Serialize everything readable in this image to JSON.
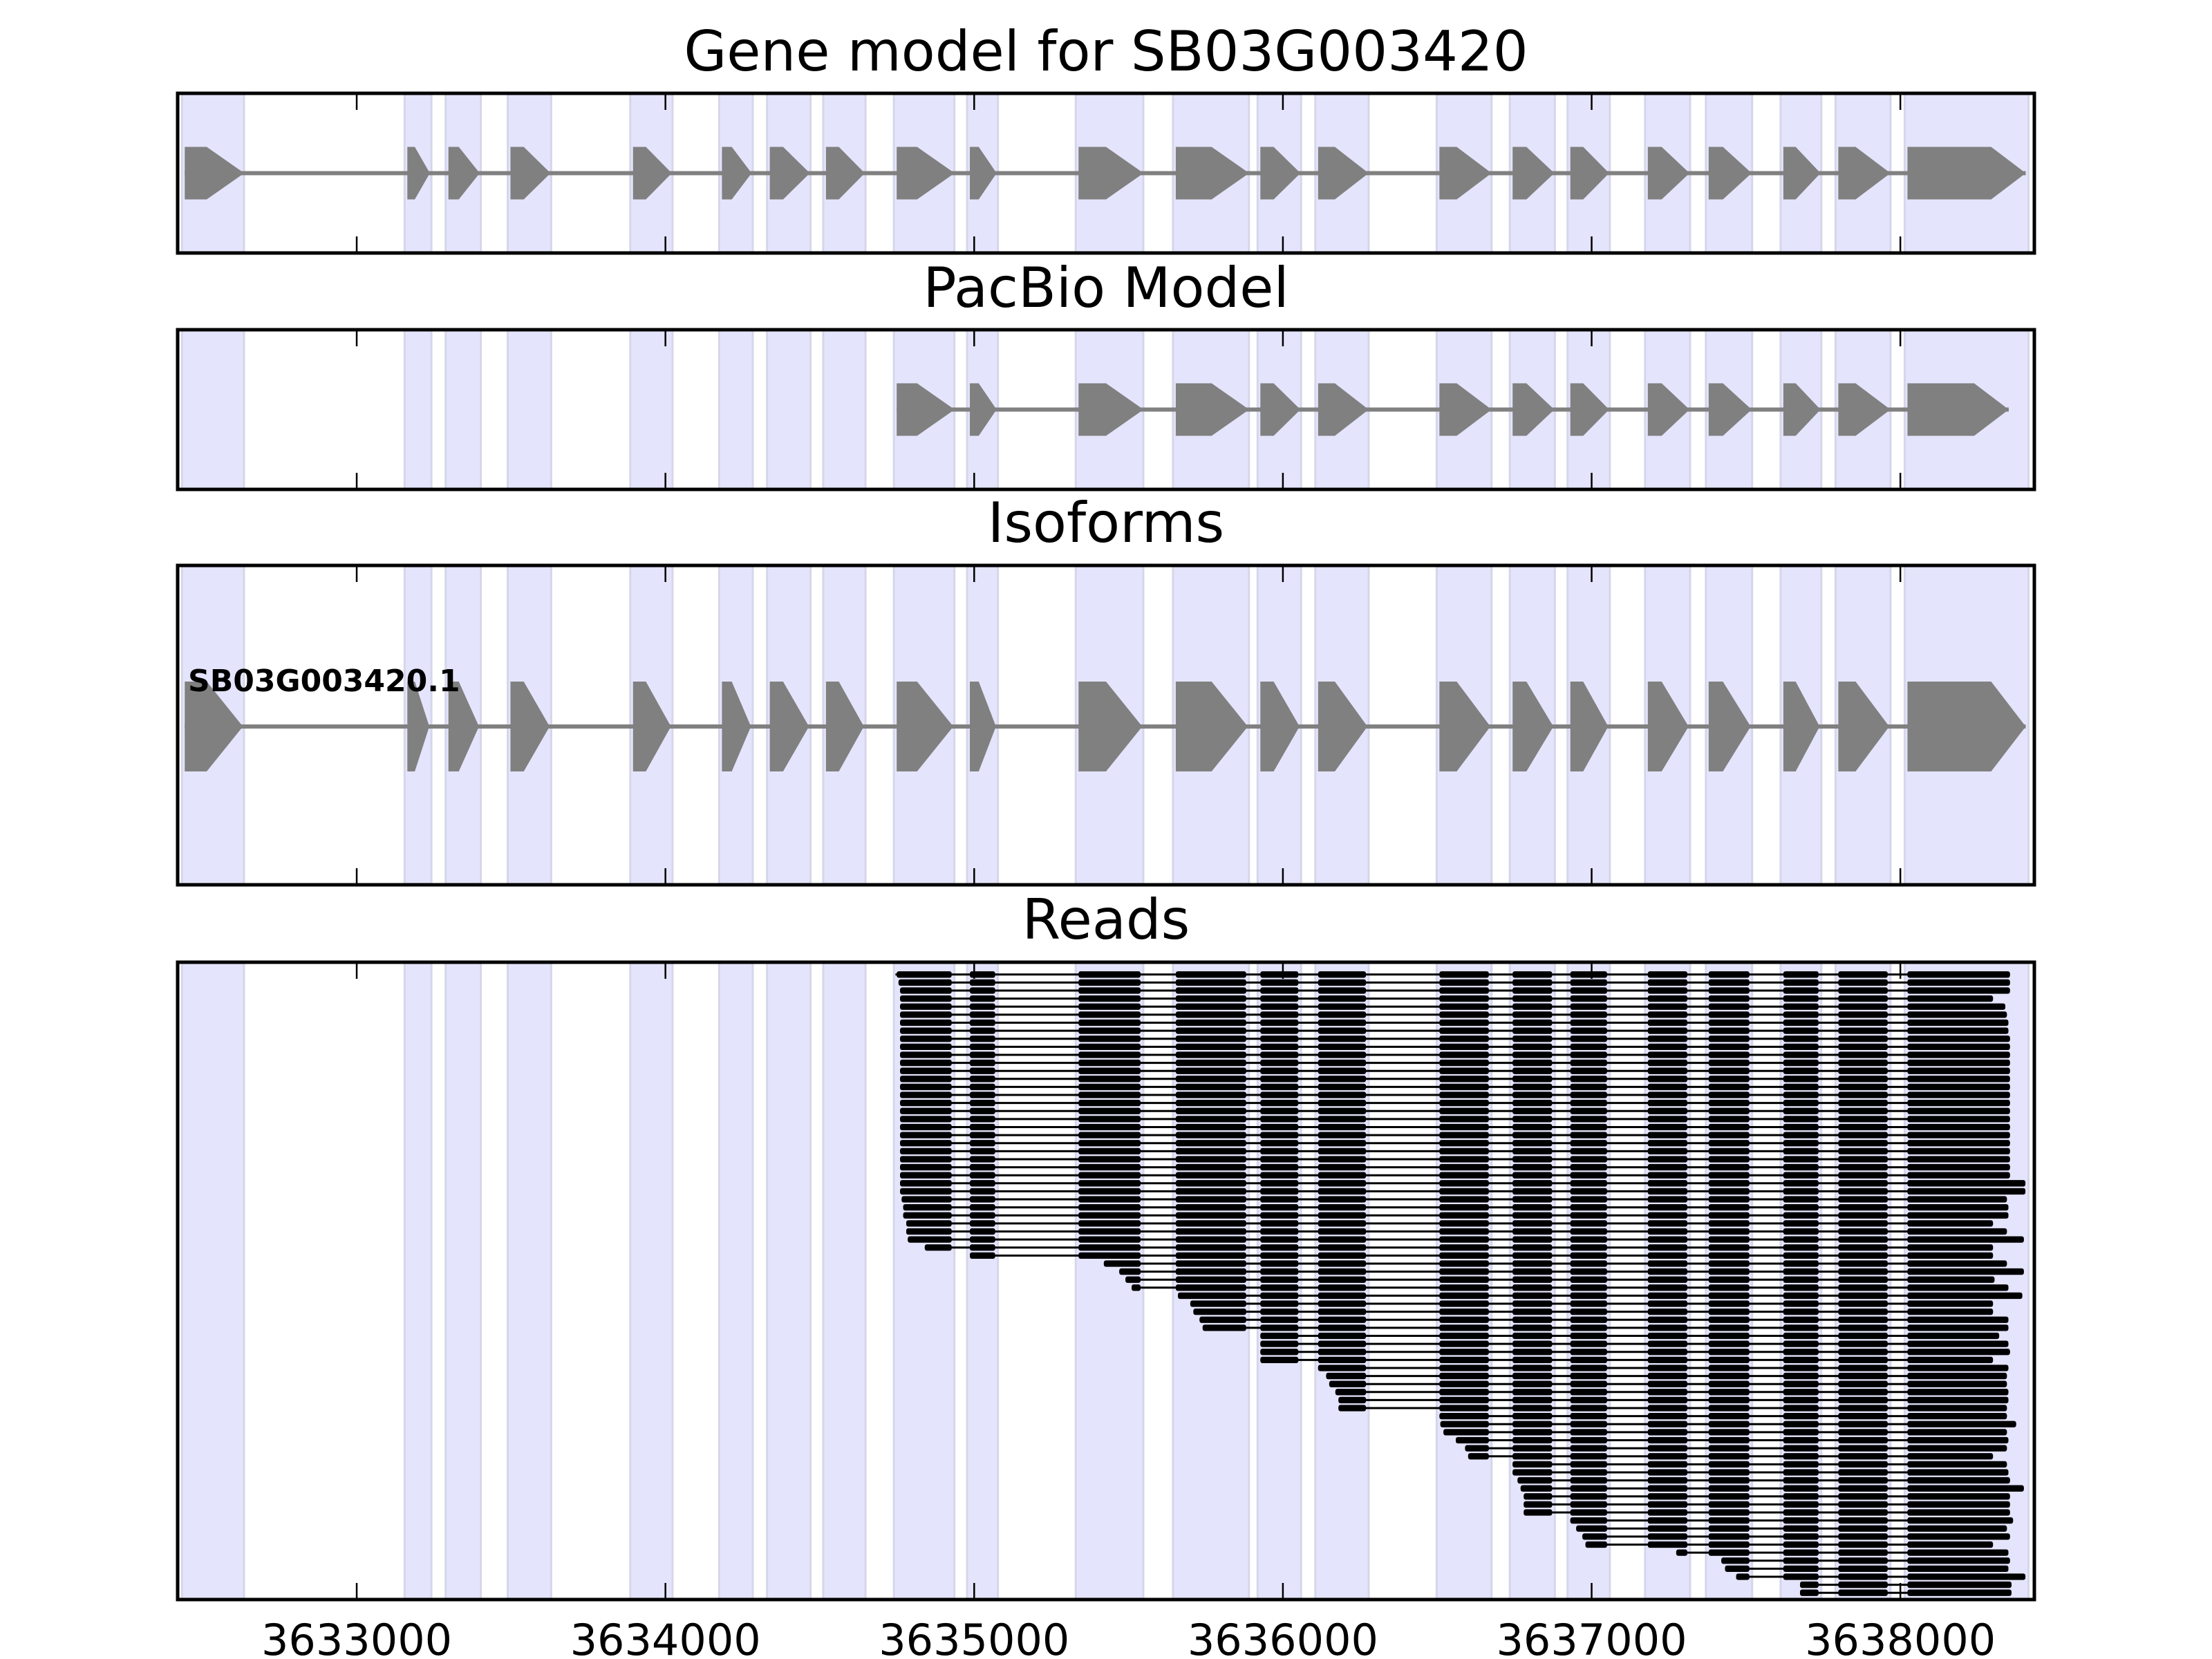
{
  "chart_data": {
    "type": "gene-track",
    "xlim": [
      3632420,
      3638434
    ],
    "x_ticks": [
      3633000,
      3634000,
      3635000,
      3636000,
      3637000,
      3638000
    ],
    "x_tick_labels": [
      "3633000",
      "3634000",
      "3635000",
      "3636000",
      "3637000",
      "3638000"
    ],
    "colors": {
      "exon": "#808080",
      "shade": "#e4e4fc",
      "shade_edge": "#d6d6ea",
      "read": "#000000"
    },
    "exons": [
      [
        3632443,
        3632626
      ],
      [
        3633164,
        3633233
      ],
      [
        3633297,
        3633393
      ],
      [
        3633498,
        3633621
      ],
      [
        3633895,
        3634014
      ],
      [
        3634183,
        3634274
      ],
      [
        3634338,
        3634461
      ],
      [
        3634520,
        3634639
      ],
      [
        3634749,
        3634927
      ],
      [
        3634986,
        3635068
      ],
      [
        3635338,
        3635539
      ],
      [
        3635653,
        3635881
      ],
      [
        3635927,
        3636050
      ],
      [
        3636114,
        3636269
      ],
      [
        3636507,
        3636667
      ],
      [
        3636744,
        3636872
      ],
      [
        3636931,
        3637050
      ],
      [
        3637182,
        3637310
      ],
      [
        3637379,
        3637511
      ],
      [
        3637621,
        3637735
      ],
      [
        3637799,
        3637959
      ],
      [
        3638023,
        3638406
      ]
    ],
    "panels": [
      {
        "title": "Gene model for SB03G003420",
        "models": [
          {
            "exon_range": [
              0,
              21
            ],
            "end": 3638406
          }
        ]
      },
      {
        "title": "PacBio Model",
        "models": [
          {
            "exon_range": [
              8,
              21
            ],
            "end": 3638351
          }
        ]
      },
      {
        "title": "Isoforms",
        "models": [
          {
            "label": "SB03G003420.1",
            "exon_range": [
              0,
              21
            ],
            "end": 3638406
          }
        ]
      },
      {
        "title": "Reads"
      }
    ],
    "reads": [
      [
        3634745,
        3638355
      ],
      [
        3634755,
        3638355
      ],
      [
        3634760,
        3638355
      ],
      [
        3634760,
        3638300
      ],
      [
        3634760,
        3638340
      ],
      [
        3634760,
        3638345
      ],
      [
        3634760,
        3638350
      ],
      [
        3634760,
        3638350
      ],
      [
        3634760,
        3638355
      ],
      [
        3634760,
        3638355
      ],
      [
        3634760,
        3638355
      ],
      [
        3634760,
        3638355
      ],
      [
        3634760,
        3638355
      ],
      [
        3634760,
        3638355
      ],
      [
        3634760,
        3638355
      ],
      [
        3634760,
        3638355
      ],
      [
        3634760,
        3638355
      ],
      [
        3634760,
        3638355
      ],
      [
        3634760,
        3638355
      ],
      [
        3634760,
        3638355
      ],
      [
        3634760,
        3638355
      ],
      [
        3634760,
        3638355
      ],
      [
        3634760,
        3638355
      ],
      [
        3634760,
        3638355
      ],
      [
        3634760,
        3638355
      ],
      [
        3634760,
        3638355
      ],
      [
        3634760,
        3638405
      ],
      [
        3634760,
        3638405
      ],
      [
        3634765,
        3638345
      ],
      [
        3634770,
        3638350
      ],
      [
        3634770,
        3638350
      ],
      [
        3634780,
        3638300
      ],
      [
        3634780,
        3638345
      ],
      [
        3634785,
        3638400
      ],
      [
        3634840,
        3638300
      ],
      [
        3634986,
        3638300
      ],
      [
        3635420,
        3638345
      ],
      [
        3635470,
        3638400
      ],
      [
        3635490,
        3638305
      ],
      [
        3635510,
        3638350
      ],
      [
        3635660,
        3638395
      ],
      [
        3635700,
        3638300
      ],
      [
        3635710,
        3638300
      ],
      [
        3635730,
        3638350
      ],
      [
        3635740,
        3638350
      ],
      [
        3635927,
        3638320
      ],
      [
        3635927,
        3638350
      ],
      [
        3635927,
        3638355
      ],
      [
        3635927,
        3638300
      ],
      [
        3636114,
        3638350
      ],
      [
        3636140,
        3638345
      ],
      [
        3636150,
        3638345
      ],
      [
        3636170,
        3638350
      ],
      [
        3636180,
        3638350
      ],
      [
        3636180,
        3638345
      ],
      [
        3636507,
        3638345
      ],
      [
        3636510,
        3638375
      ],
      [
        3636520,
        3638345
      ],
      [
        3636560,
        3638350
      ],
      [
        3636590,
        3638345
      ],
      [
        3636600,
        3638300
      ],
      [
        3636744,
        3638345
      ],
      [
        3636744,
        3638350
      ],
      [
        3636760,
        3638355
      ],
      [
        3636770,
        3638400
      ],
      [
        3636780,
        3638355
      ],
      [
        3636780,
        3638355
      ],
      [
        3636780,
        3638355
      ],
      [
        3636931,
        3638365
      ],
      [
        3636950,
        3638345
      ],
      [
        3636970,
        3638355
      ],
      [
        3636980,
        3638300
      ],
      [
        3637274,
        3638350
      ],
      [
        3637420,
        3638355
      ],
      [
        3637432,
        3638350
      ],
      [
        3637468,
        3638405
      ],
      [
        3637675,
        3638360
      ],
      [
        3637675,
        3638360
      ]
    ]
  }
}
